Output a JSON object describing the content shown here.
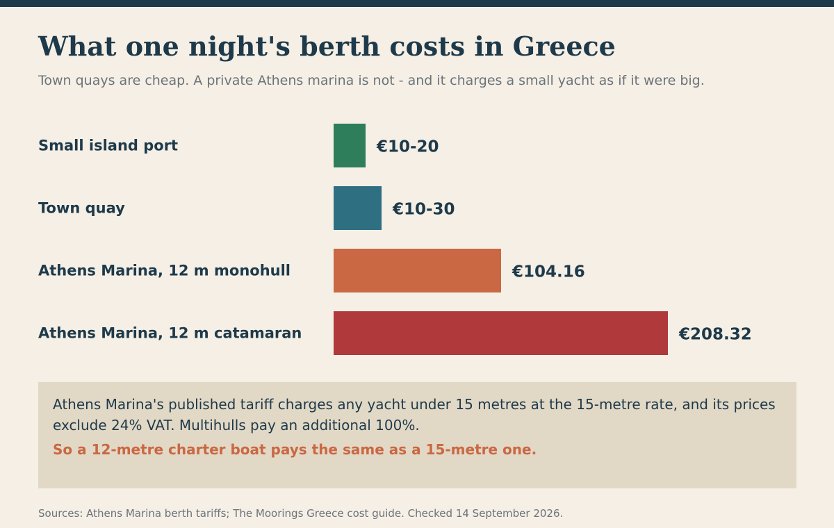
{
  "title": "What one night's berth costs in Greece",
  "subtitle": "Town quays are cheap. A private Athens marina is not - and it charges a small yacht as if it were big.",
  "chart_data": {
    "type": "bar",
    "orientation": "horizontal",
    "title": "What one night's berth costs in Greece",
    "subtitle": "Town quays are cheap. A private Athens marina is not - and it charges a small yacht as if it were big.",
    "categories": [
      "Small island port",
      "Town quay",
      "Athens Marina, 12 m monohull",
      "Athens Marina, 12 m catamaran"
    ],
    "values": [
      20,
      30,
      104.16,
      208.32
    ],
    "ranges": [
      [
        10,
        20
      ],
      [
        10,
        30
      ],
      [
        104.16,
        104.16
      ],
      [
        208.32,
        208.32
      ]
    ],
    "value_labels": [
      "€10-20",
      "€10-30",
      "€104.16",
      "€208.32"
    ],
    "colors": [
      "#2e7d5b",
      "#2f6f82",
      "#c96843",
      "#b0393b"
    ],
    "currency": "€",
    "xlim": [
      0,
      208.32
    ],
    "grid": false,
    "legend": "none"
  },
  "note": {
    "text": "Athens Marina's published tariff charges any yacht under 15 metres at the 15-metre rate, and its prices exclude 24% VAT. Multihulls pay an additional 100%.",
    "emphasis": "So a 12-metre charter boat pays the same as a 15-metre one."
  },
  "sources": "Sources: Athens Marina berth tariffs; The Moorings Greece cost guide. Checked 14 September 2026.",
  "colors": {
    "background": "#f5efe6",
    "ink": "#1e3a4a",
    "muted": "#6b7378",
    "note_background": "#e2d8c6",
    "accent": "#c96843"
  }
}
